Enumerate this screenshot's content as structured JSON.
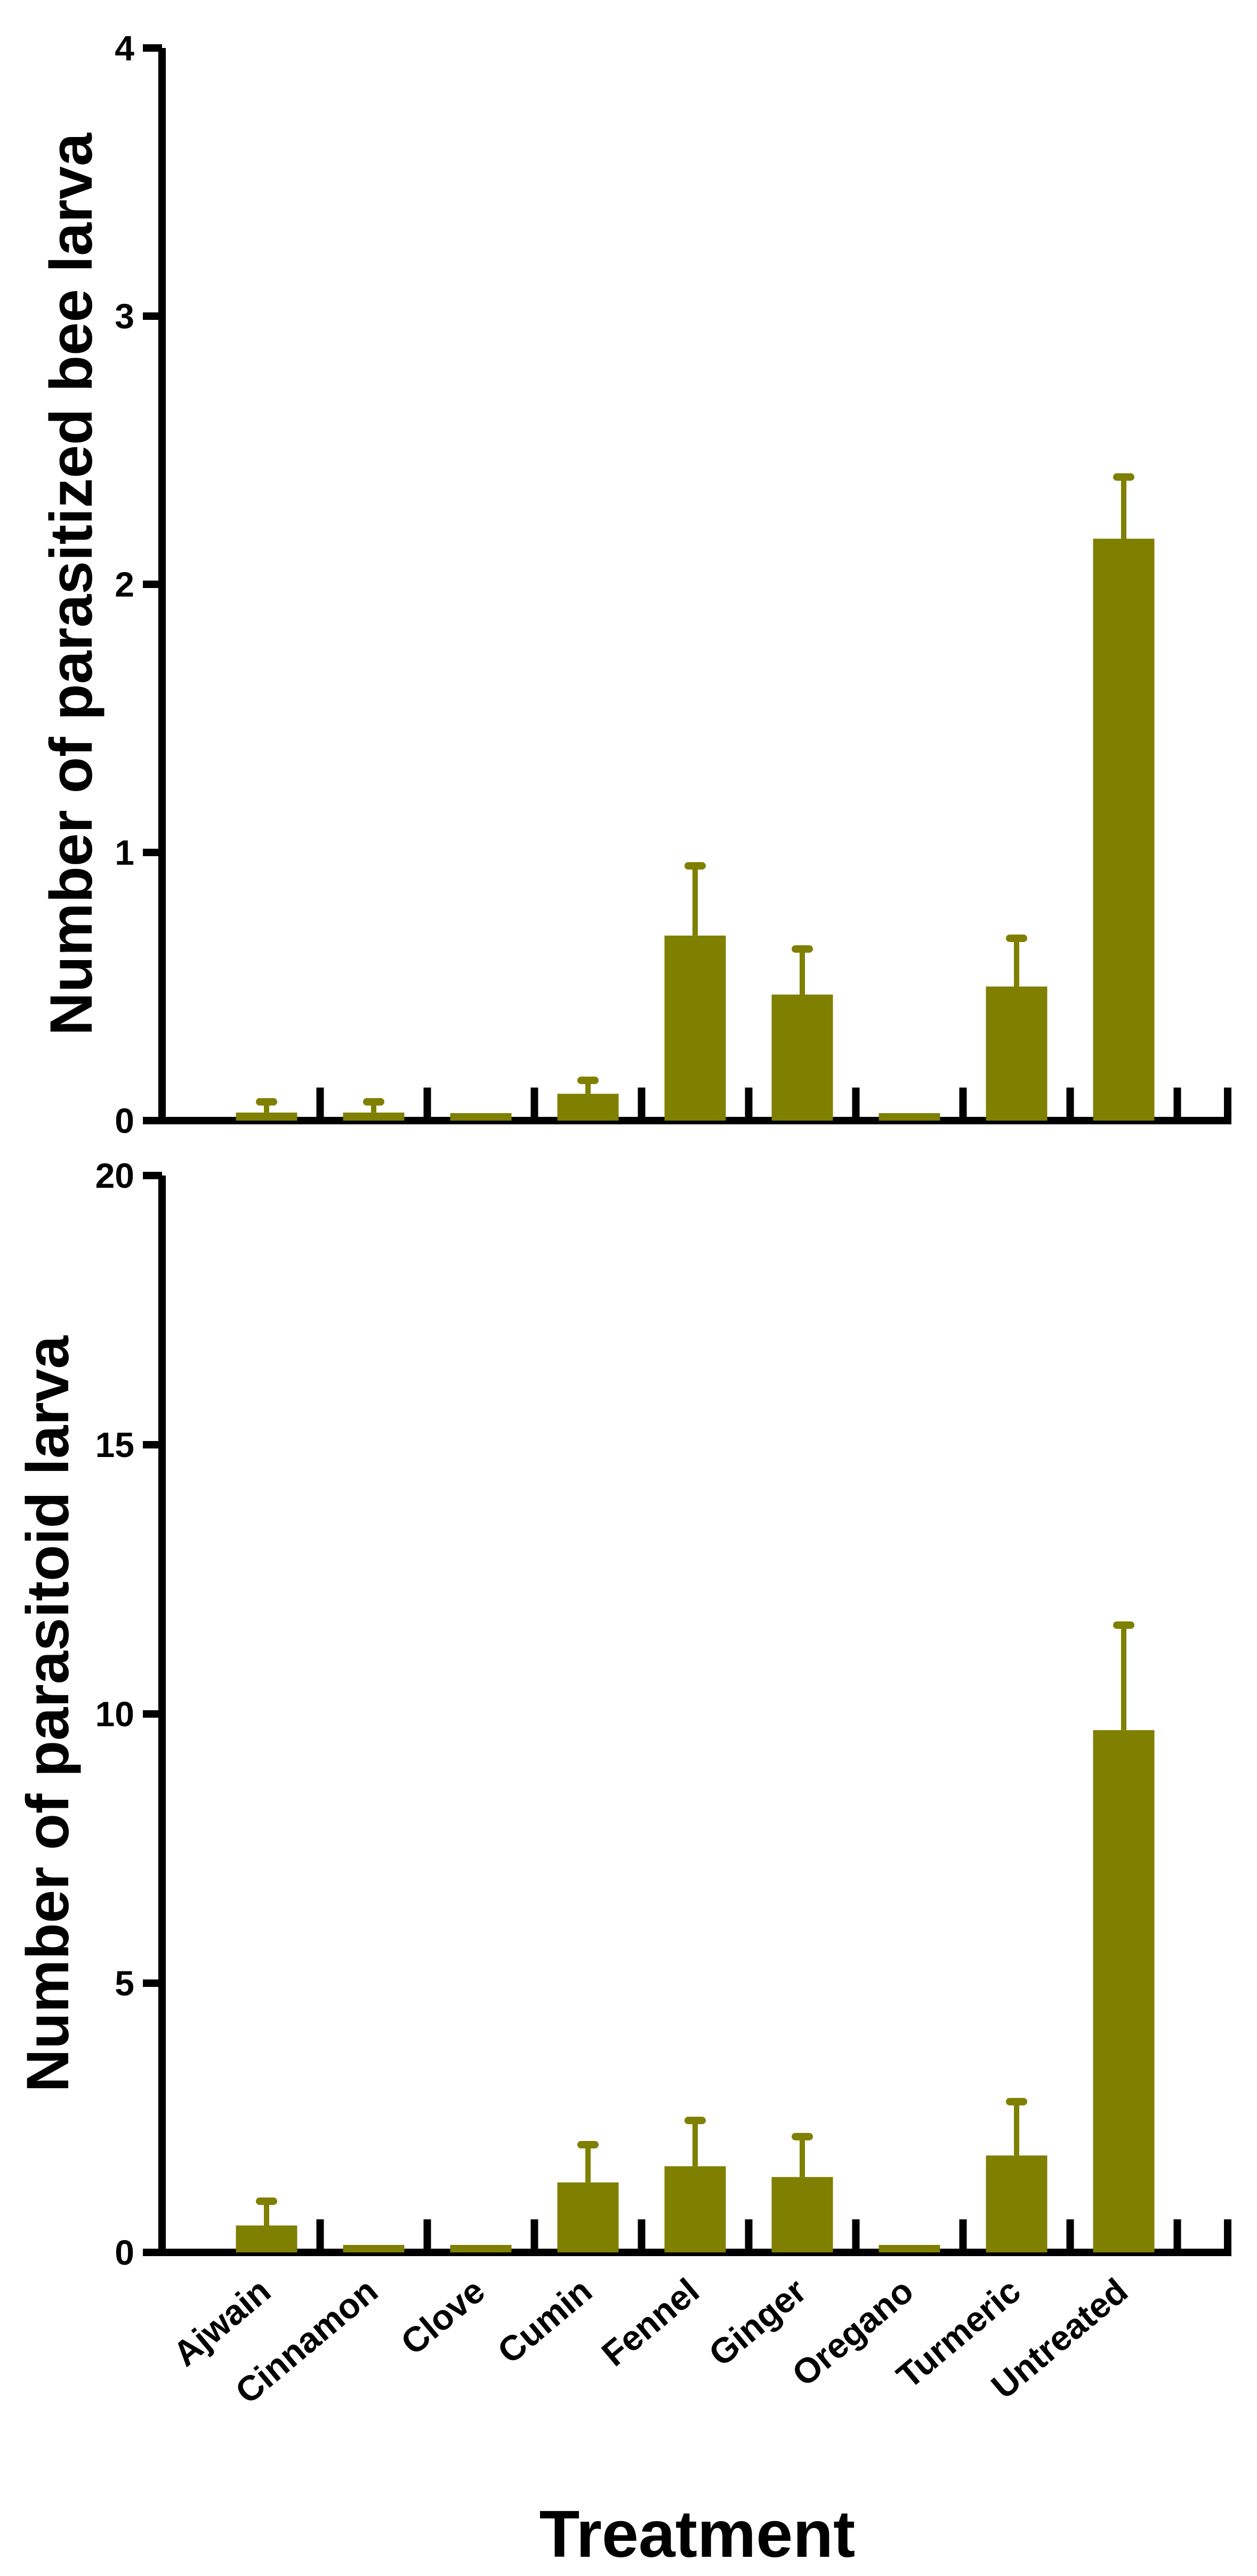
{
  "chart_data": [
    {
      "type": "bar",
      "ylabel": "Number of parasitized bee larva",
      "xlabel": "",
      "ylim": [
        0,
        4
      ],
      "yticks": [
        0,
        1,
        2,
        3,
        4
      ],
      "categories": [
        "Ajwain",
        "Cinnamon",
        "Clove",
        "Cumin",
        "Fennel",
        "Ginger",
        "Oregano",
        "Turmeric",
        "Untreated"
      ],
      "values": [
        0.03,
        0.03,
        0.0,
        0.1,
        0.69,
        0.47,
        0.0,
        0.5,
        2.17
      ],
      "errors": [
        0.04,
        0.04,
        0.0,
        0.05,
        0.26,
        0.17,
        0.0,
        0.18,
        0.23
      ],
      "bar_color": "#7f7f00",
      "grid": false,
      "show_x_tick_labels": false
    },
    {
      "type": "bar",
      "ylabel": "Number of parasitoid larva",
      "xlabel": "Treatment",
      "ylim": [
        0,
        20
      ],
      "yticks": [
        0,
        5,
        10,
        15,
        20
      ],
      "categories": [
        "Ajwain",
        "Cinnamon",
        "Clove",
        "Cumin",
        "Fennel",
        "Ginger",
        "Oregano",
        "Turmeric",
        "Untreated"
      ],
      "values": [
        0.5,
        0.0,
        0.0,
        1.3,
        1.6,
        1.4,
        0.0,
        1.8,
        9.7
      ],
      "errors": [
        0.45,
        0.0,
        0.0,
        0.7,
        0.85,
        0.75,
        0.0,
        1.0,
        1.95
      ],
      "bar_color": "#7f7f00",
      "grid": false,
      "show_x_tick_labels": true
    }
  ]
}
